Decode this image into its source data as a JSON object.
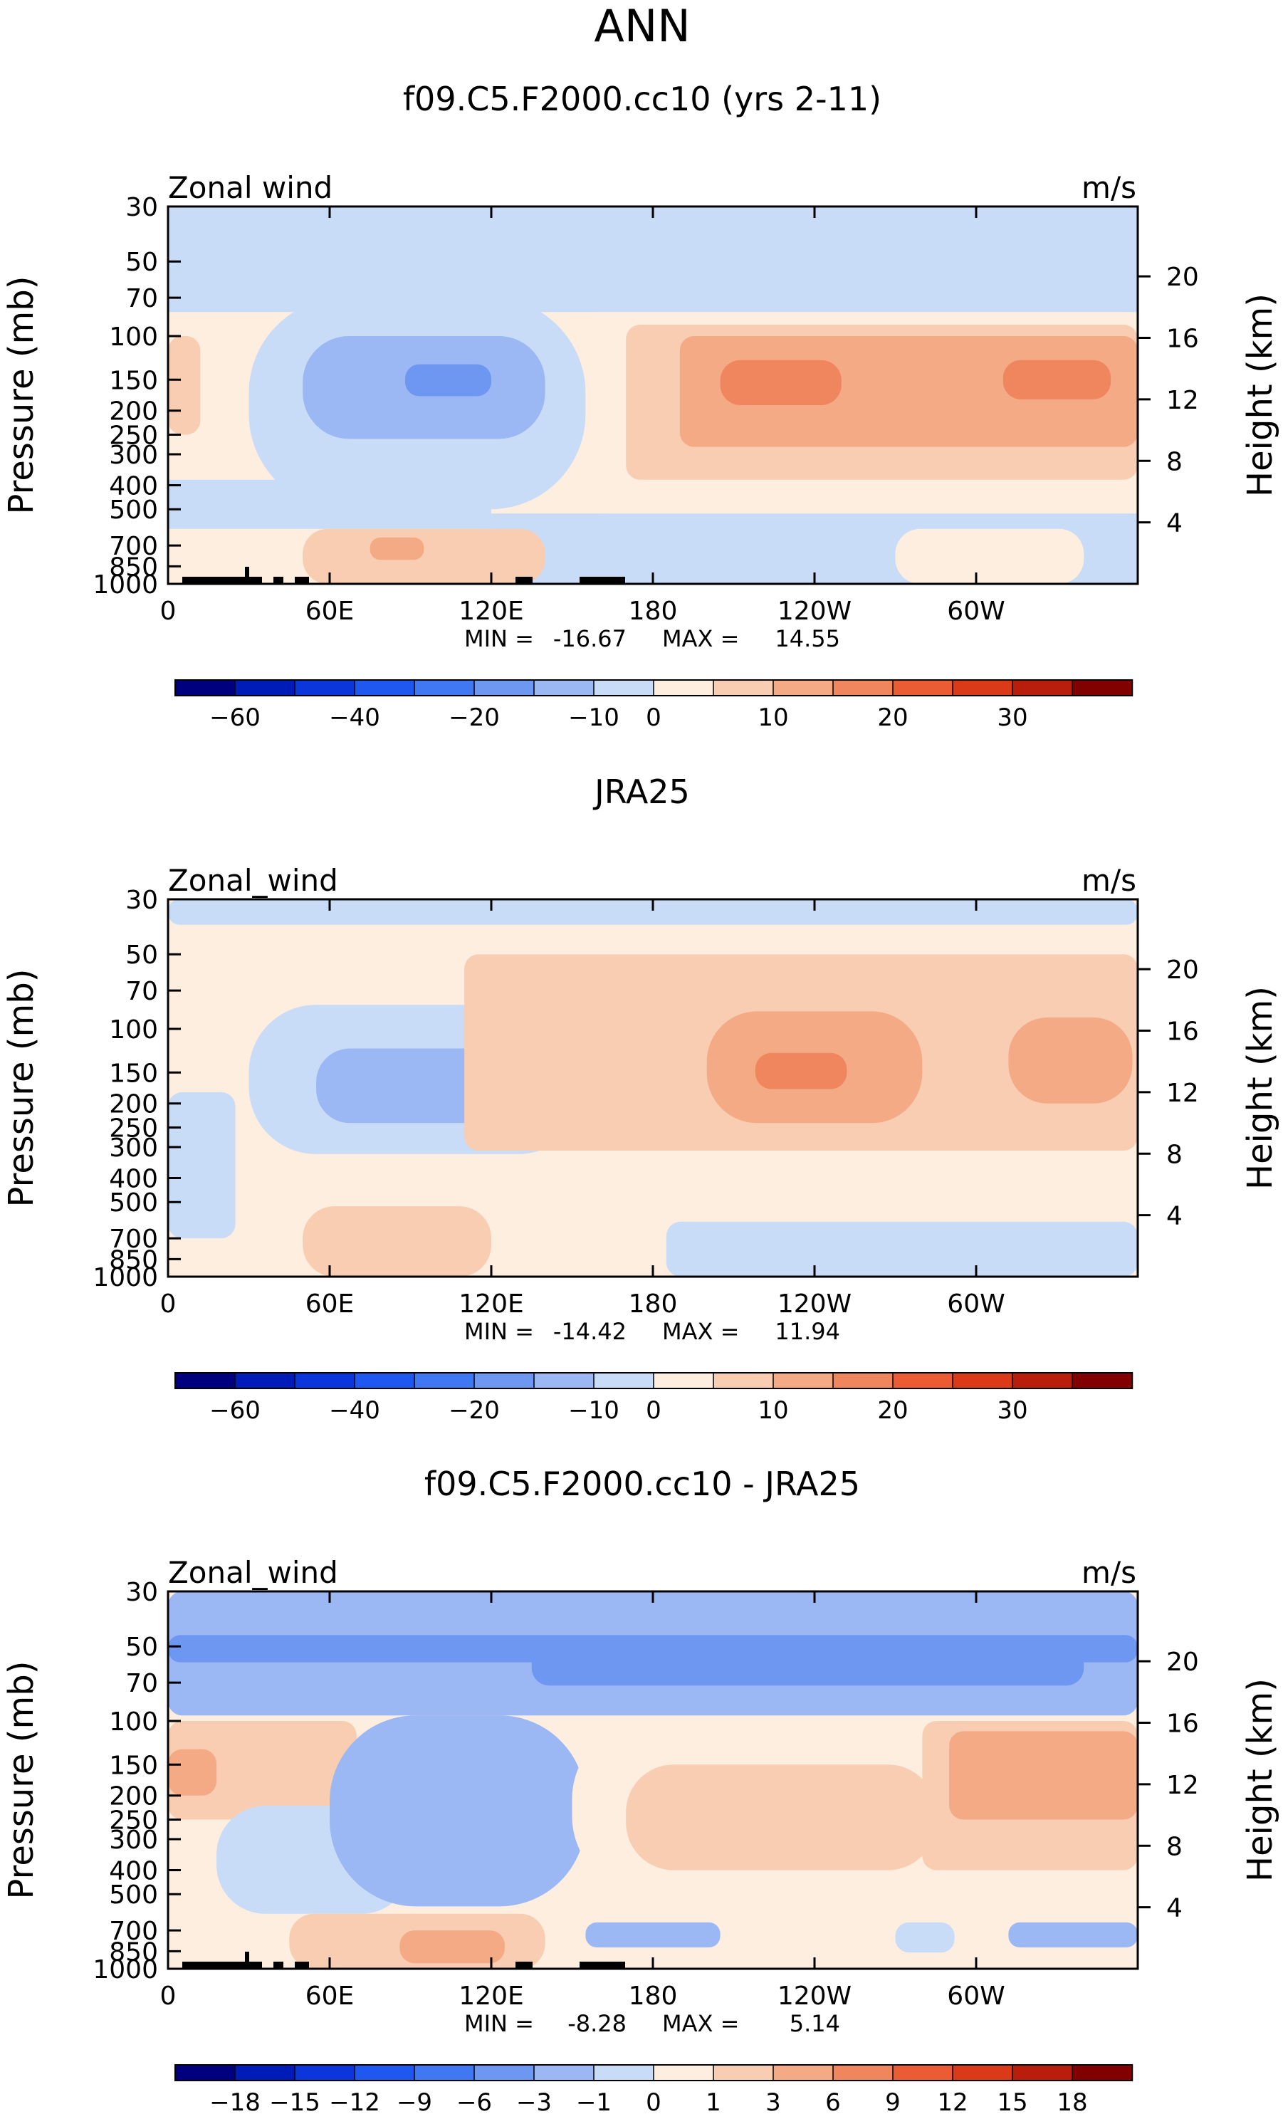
{
  "page_title": "ANN",
  "colors": {
    "cbar_main": [
      "#00007f",
      "#001cb8",
      "#0a36dc",
      "#1f58f0",
      "#3f78f2",
      "#6e97f2",
      "#9bb8f4",
      "#c9dcf7",
      "#fdeee0",
      "#f9cdb2",
      "#f5aa86",
      "#f0865e",
      "#eb5c34",
      "#da3a18",
      "#b91e0d",
      "#810000"
    ],
    "fill": {
      "c_m30": "#6e97f2",
      "c_m20": "#9bb8f4",
      "c_m10": "#c9dcf7",
      "c_m5": "#dbe8f9",
      "w_0": "#fdeee0",
      "w_5": "#f9cdb2",
      "w_10": "#f5aa86",
      "w_15": "#f0865e"
    },
    "frame": "#000000",
    "topography": "#000000"
  },
  "chart_data": [
    {
      "type": "heatmap",
      "title": "f09.C5.F2000.cc10 (yrs 2-11)",
      "variable_label": "Zonal wind",
      "units": "m/s",
      "ylabel": "Pressure (mb)",
      "y2label": "Height (km)",
      "xticks": [
        "0",
        "60E",
        "120E",
        "180",
        "120W",
        "60W"
      ],
      "yticks": [
        "30",
        "50",
        "70",
        "100",
        "150",
        "200",
        "250",
        "300",
        "400",
        "500",
        "700",
        "850",
        "1000"
      ],
      "y2ticks": [
        "20",
        "16",
        "12",
        "8",
        "4"
      ],
      "stats": {
        "min": "-16.67",
        "max": "14.55",
        "min_label": "MIN =",
        "max_label": "MAX ="
      },
      "colorbar_labels": [
        "−60",
        "−40",
        "−20",
        "−10",
        "0",
        "10",
        "20",
        "30"
      ],
      "ylim_mb": [
        1000,
        30
      ],
      "xlim_lon": [
        0,
        360
      ],
      "regions": [
        {
          "level": "w_5",
          "lon": [
            0,
            12
          ],
          "mb": [
            100,
            250
          ]
        },
        {
          "level": "c_m10",
          "lon": [
            30,
            155
          ],
          "mb": [
            70,
            500
          ]
        },
        {
          "level": "c_m20",
          "lon": [
            50,
            140
          ],
          "mb": [
            100,
            260
          ]
        },
        {
          "level": "c_m30",
          "lon": [
            88,
            120
          ],
          "mb": [
            130,
            175
          ]
        },
        {
          "level": "w_5",
          "lon": [
            50,
            140
          ],
          "mb": [
            600,
            1000
          ]
        },
        {
          "level": "w_10",
          "lon": [
            75,
            95
          ],
          "mb": [
            650,
            800
          ]
        },
        {
          "level": "w_0",
          "lon": [
            155,
            360
          ],
          "mb": [
            80,
            520
          ]
        },
        {
          "level": "w_5",
          "lon": [
            170,
            360
          ],
          "mb": [
            90,
            380
          ]
        },
        {
          "level": "w_10",
          "lon": [
            190,
            360
          ],
          "mb": [
            100,
            280
          ]
        },
        {
          "level": "w_15",
          "lon": [
            205,
            250
          ],
          "mb": [
            125,
            190
          ]
        },
        {
          "level": "w_15",
          "lon": [
            310,
            350
          ],
          "mb": [
            125,
            180
          ]
        },
        {
          "level": "c_m10",
          "lon": [
            195,
            235
          ],
          "mb": [
            780,
            880
          ]
        },
        {
          "level": "w_0",
          "lon": [
            270,
            340
          ],
          "mb": [
            600,
            1000
          ]
        }
      ]
    },
    {
      "type": "heatmap",
      "title": "JRA25",
      "variable_label": "Zonal_wind",
      "units": "m/s",
      "ylabel": "Pressure (mb)",
      "y2label": "Height (km)",
      "xticks": [
        "0",
        "60E",
        "120E",
        "180",
        "120W",
        "60W"
      ],
      "yticks": [
        "30",
        "50",
        "70",
        "100",
        "150",
        "200",
        "250",
        "300",
        "400",
        "500",
        "700",
        "850",
        "1000"
      ],
      "y2ticks": [
        "20",
        "16",
        "12",
        "8",
        "4"
      ],
      "stats": {
        "min": "-14.42",
        "max": "11.94",
        "min_label": "MIN =",
        "max_label": "MAX ="
      },
      "colorbar_labels": [
        "−60",
        "−40",
        "−20",
        "−10",
        "0",
        "10",
        "20",
        "30"
      ],
      "ylim_mb": [
        1000,
        30
      ],
      "xlim_lon": [
        0,
        360
      ],
      "regions": [
        {
          "level": "c_m10",
          "lon": [
            0,
            360
          ],
          "mb": [
            30,
            38
          ]
        },
        {
          "level": "c_m10",
          "lon": [
            0,
            25
          ],
          "mb": [
            180,
            700
          ]
        },
        {
          "level": "c_m10",
          "lon": [
            30,
            155
          ],
          "mb": [
            80,
            320
          ]
        },
        {
          "level": "c_m20",
          "lon": [
            55,
            135
          ],
          "mb": [
            120,
            240
          ]
        },
        {
          "level": "w_5",
          "lon": [
            110,
            360
          ],
          "mb": [
            50,
            310
          ]
        },
        {
          "level": "w_10",
          "lon": [
            200,
            280
          ],
          "mb": [
            85,
            240
          ]
        },
        {
          "level": "w_15",
          "lon": [
            218,
            252
          ],
          "mb": [
            125,
            175
          ]
        },
        {
          "level": "w_10",
          "lon": [
            312,
            358
          ],
          "mb": [
            90,
            200
          ]
        },
        {
          "level": "w_5",
          "lon": [
            50,
            120
          ],
          "mb": [
            520,
            1000
          ]
        },
        {
          "level": "c_m10",
          "lon": [
            185,
            360
          ],
          "mb": [
            600,
            1000
          ]
        }
      ]
    },
    {
      "type": "heatmap",
      "title": "f09.C5.F2000.cc10 - JRA25",
      "variable_label": "Zonal_wind",
      "units": "m/s",
      "ylabel": "Pressure (mb)",
      "y2label": "Height (km)",
      "xticks": [
        "0",
        "60E",
        "120E",
        "180",
        "120W",
        "60W"
      ],
      "yticks": [
        "30",
        "50",
        "70",
        "100",
        "150",
        "200",
        "250",
        "300",
        "400",
        "500",
        "700",
        "850",
        "1000"
      ],
      "y2ticks": [
        "20",
        "16",
        "12",
        "8",
        "4"
      ],
      "stats": {
        "min": "-8.28",
        "max": "5.14",
        "min_label": "MIN =",
        "max_label": "MAX ="
      },
      "colorbar_labels": [
        "−18",
        "−15",
        "−12",
        "−9",
        "−6",
        "−3",
        "−1",
        "0",
        "1",
        "3",
        "6",
        "9",
        "12",
        "15",
        "18"
      ],
      "ylim_mb": [
        1000,
        30
      ],
      "xlim_lon": [
        0,
        360
      ],
      "regions": [
        {
          "level": "c_m20",
          "lon": [
            0,
            360
          ],
          "mb": [
            30,
            95
          ]
        },
        {
          "level": "c_m30",
          "lon": [
            0,
            360
          ],
          "mb": [
            45,
            58
          ]
        },
        {
          "level": "c_m30",
          "lon": [
            135,
            340
          ],
          "mb": [
            50,
            72
          ]
        },
        {
          "level": "w_5",
          "lon": [
            0,
            70
          ],
          "mb": [
            100,
            250
          ]
        },
        {
          "level": "w_10",
          "lon": [
            0,
            18
          ],
          "mb": [
            130,
            200
          ]
        },
        {
          "level": "c_m10",
          "lon": [
            18,
            90
          ],
          "mb": [
            220,
            600
          ]
        },
        {
          "level": "c_m20",
          "lon": [
            60,
            155
          ],
          "mb": [
            95,
            560
          ]
        },
        {
          "level": "w_0",
          "lon": [
            150,
            285
          ],
          "mb": [
            100,
            500
          ]
        },
        {
          "level": "w_5",
          "lon": [
            170,
            285
          ],
          "mb": [
            150,
            400
          ]
        },
        {
          "level": "w_5",
          "lon": [
            280,
            360
          ],
          "mb": [
            100,
            400
          ]
        },
        {
          "level": "w_10",
          "lon": [
            290,
            360
          ],
          "mb": [
            110,
            250
          ]
        },
        {
          "level": "w_5",
          "lon": [
            45,
            140
          ],
          "mb": [
            600,
            1000
          ]
        },
        {
          "level": "w_10",
          "lon": [
            86,
            125
          ],
          "mb": [
            700,
            950
          ]
        },
        {
          "level": "c_m20",
          "lon": [
            155,
            205
          ],
          "mb": [
            650,
            820
          ]
        },
        {
          "level": "c_m10",
          "lon": [
            270,
            292
          ],
          "mb": [
            650,
            860
          ]
        },
        {
          "level": "c_m20",
          "lon": [
            312,
            360
          ],
          "mb": [
            650,
            820
          ]
        }
      ]
    }
  ]
}
